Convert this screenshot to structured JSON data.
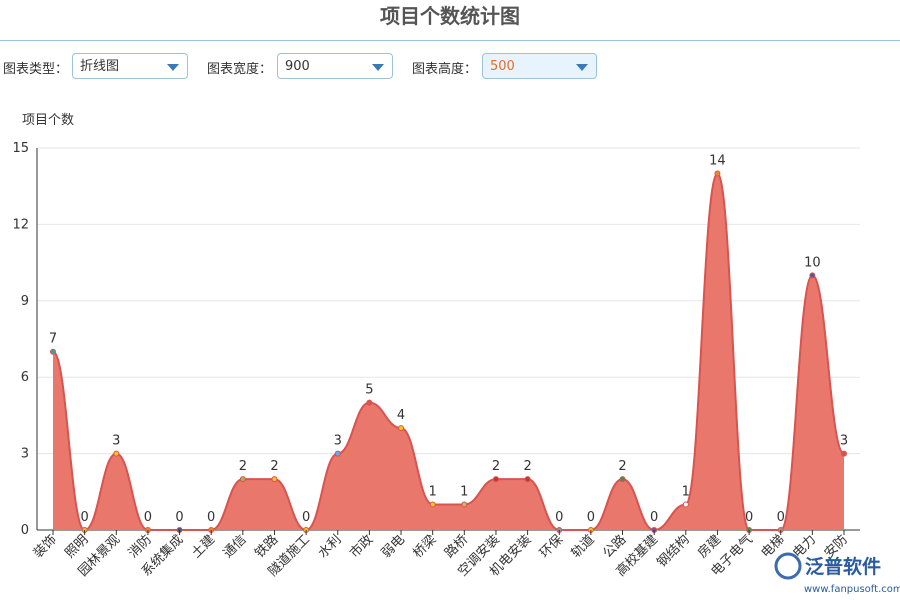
{
  "header": {
    "title": "项目个数统计图"
  },
  "controls": [
    {
      "label": "图表类型：",
      "value": "折线图"
    },
    {
      "label": "图表宽度：",
      "value": "900"
    },
    {
      "label": "图表高度：",
      "value": "500"
    }
  ],
  "watermark": {
    "brand": "泛普软件",
    "url": "www.fanpusoft.com"
  },
  "chart_data": {
    "type": "line",
    "y_axis_label": "项目个数",
    "categories": [
      "装饰",
      "照明",
      "园林景观",
      "消防",
      "系统集成",
      "土建",
      "通信",
      "铁路",
      "隧道施工",
      "水利",
      "市政",
      "弱电",
      "桥梁",
      "路桥",
      "空调安装",
      "机电安装",
      "环保",
      "轨道",
      "公路",
      "高校基建",
      "钢结构",
      "房建",
      "电子电气",
      "电梯",
      "电力",
      "安防"
    ],
    "values": [
      7,
      0,
      3,
      0,
      0,
      0,
      2,
      2,
      0,
      3,
      5,
      4,
      1,
      1,
      2,
      2,
      0,
      0,
      2,
      0,
      1,
      14,
      0,
      0,
      10,
      3
    ],
    "color": "#d9534f",
    "area_color": "#e9776c",
    "point_colors": [
      "#2fa8a0",
      "#e8c21a",
      "#f2c811",
      "#e8892d",
      "#2a5a8a",
      "#e8892d",
      "#8cc152",
      "#f2c811",
      "#f2c811",
      "#6aa8e8",
      "#d9534f",
      "#f2c811",
      "#f2c811",
      "#c8b46a",
      "#c0392b",
      "#c0392b",
      "#7a9a9a",
      "#f2c811",
      "#2e9a5a",
      "#8e44ad",
      "#ffffff",
      "#e8892d",
      "#2e9a5a",
      "#999999",
      "#2a6ab0",
      "#d9534f"
    ],
    "smooth": true,
    "ylim": [
      0,
      15
    ],
    "yticks": [
      0,
      3,
      6,
      9,
      12,
      15
    ],
    "grid": true
  }
}
